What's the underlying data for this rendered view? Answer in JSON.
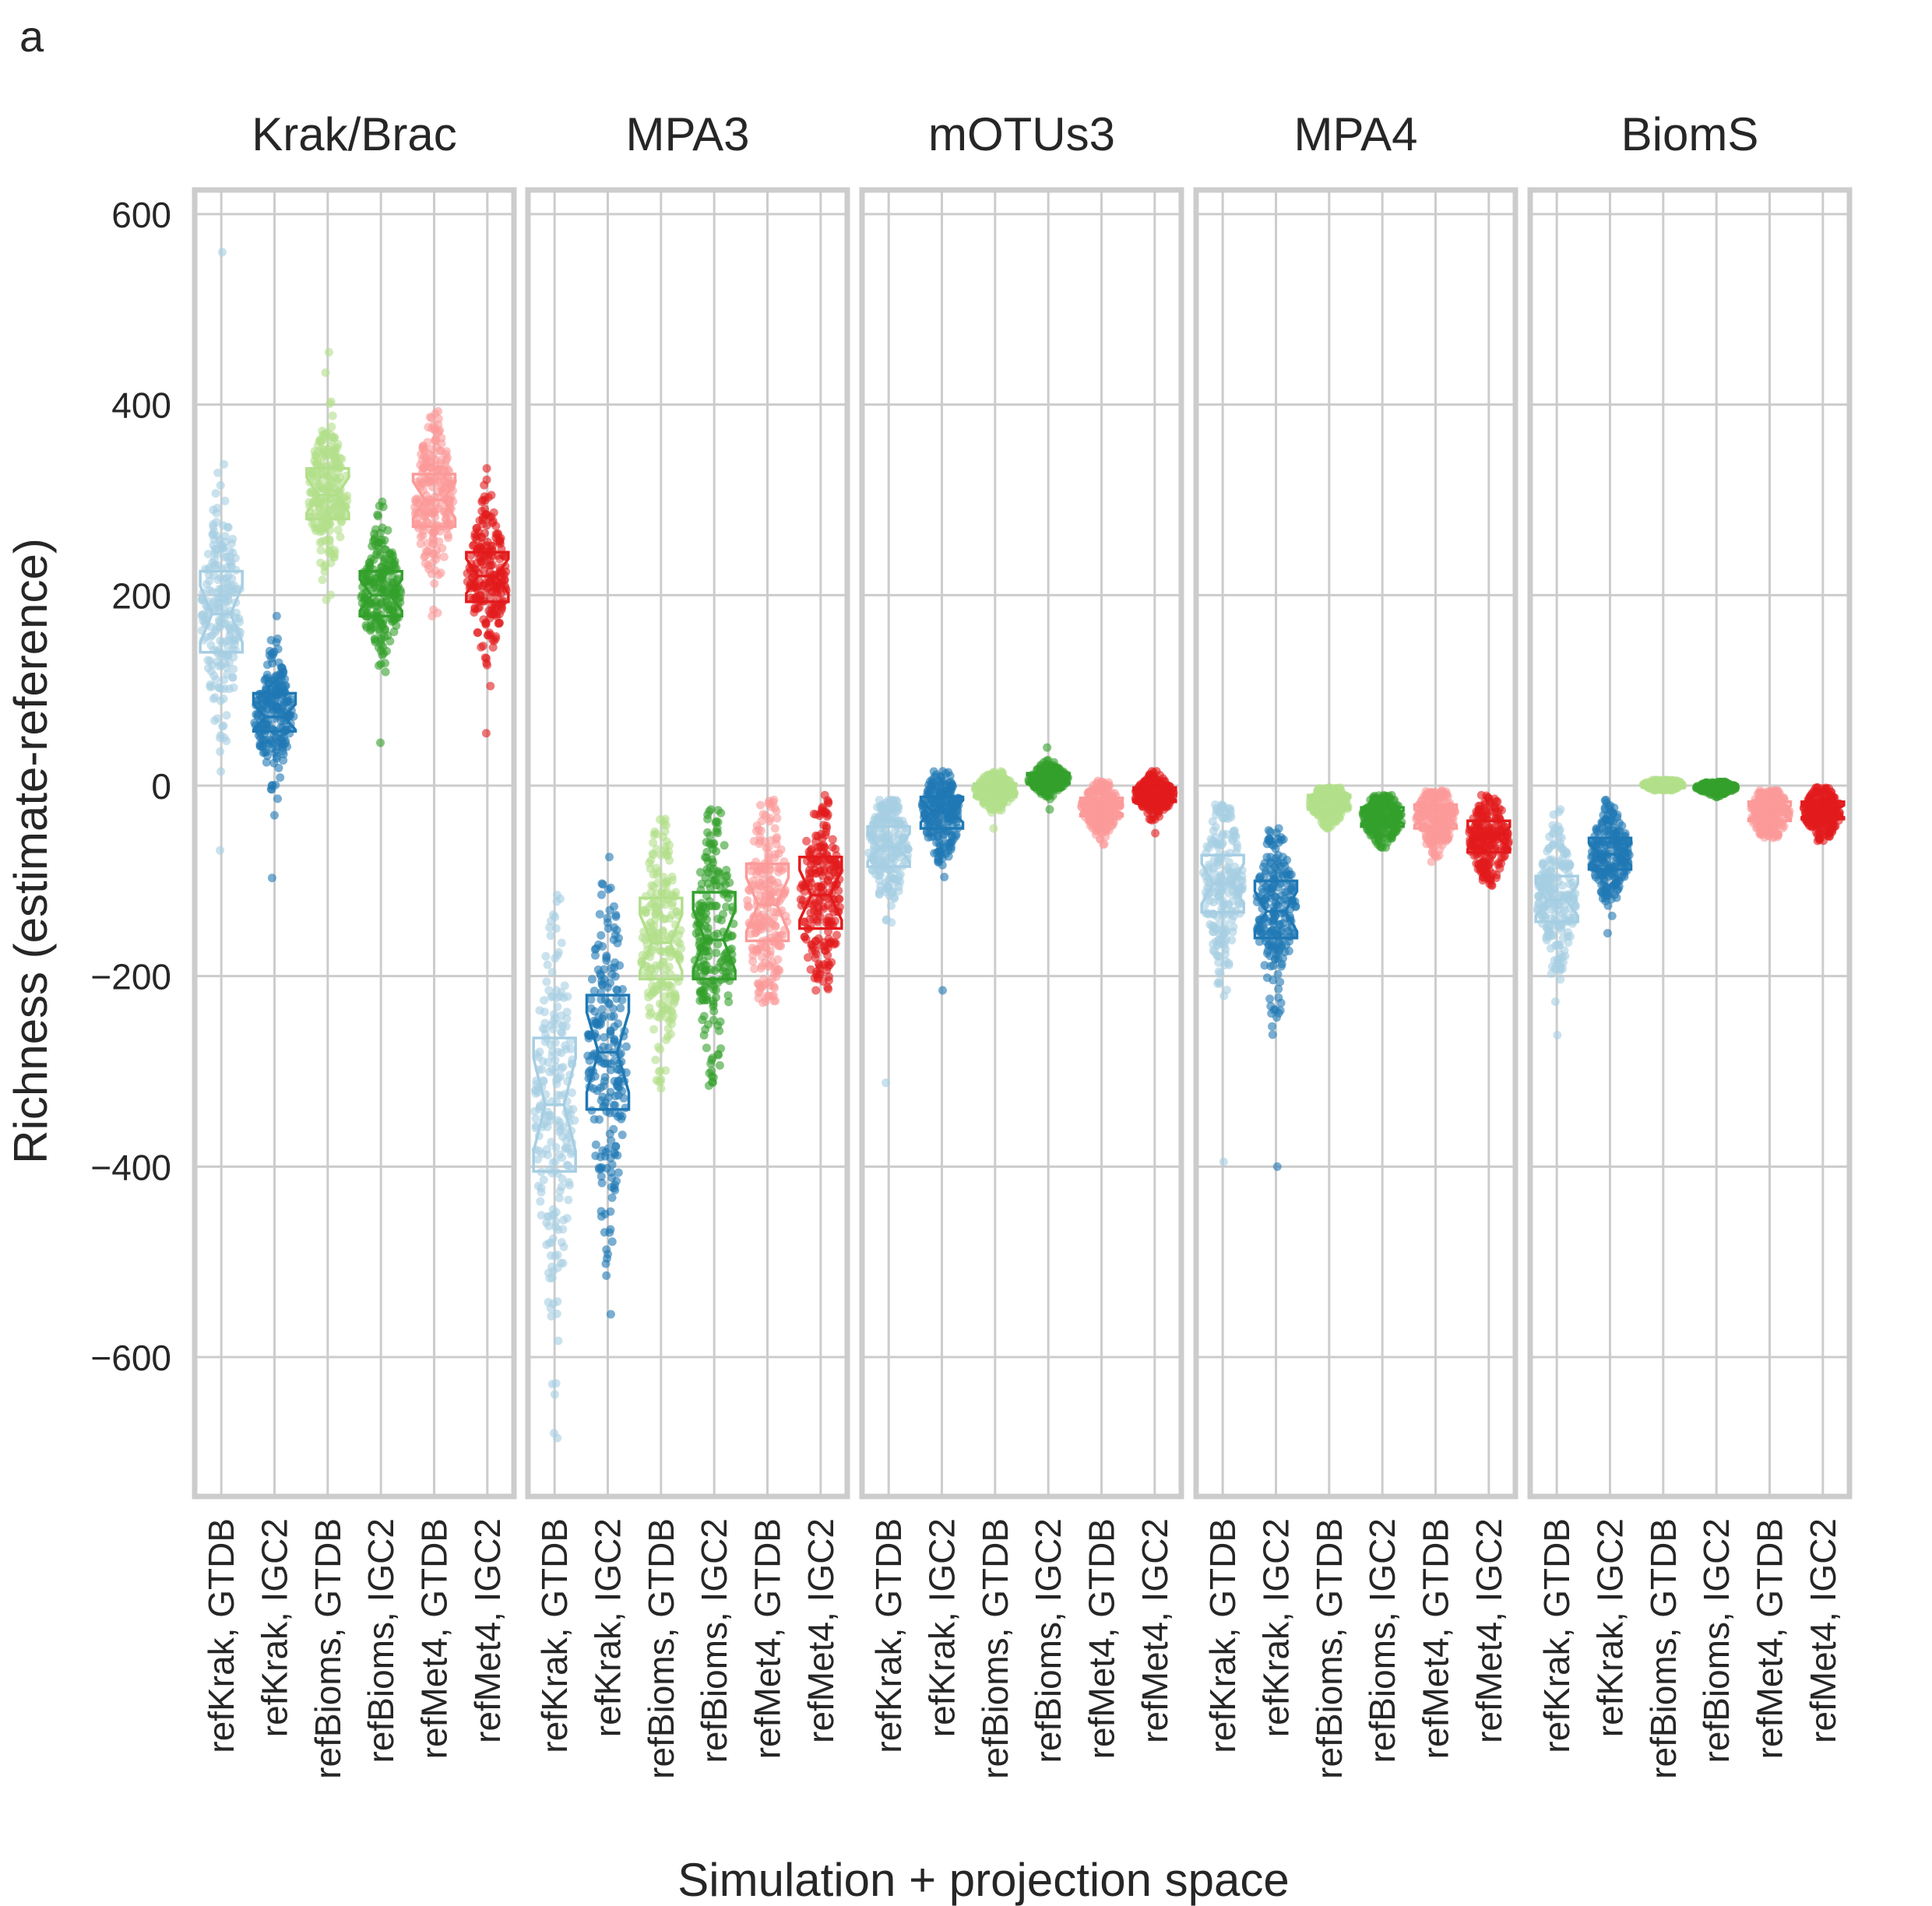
{
  "panel_label": "a",
  "chart_data": {
    "type": "box",
    "ylabel": "Richness (estimate-reference)",
    "xlabel": "Simulation + projection space",
    "ylim": [
      -730,
      625
    ],
    "yticks": [
      600,
      400,
      200,
      0,
      -200,
      -400,
      -600
    ],
    "ytick_labels": [
      "600",
      "400",
      "200",
      "0",
      "−200",
      "−400",
      "−600"
    ],
    "grid": true,
    "categories": [
      "refKrak, GTDB",
      "refKrak, IGC2",
      "refBioms, GTDB",
      "refBioms, IGC2",
      "refMet4, GTDB",
      "refMet4, IGC2"
    ],
    "colors": [
      "#a6cee3",
      "#1f78b4",
      "#b2df8a",
      "#33a02c",
      "#fb9a99",
      "#e31a1c"
    ],
    "panels": [
      {
        "title": "Krak/Brac",
        "boxes": [
          {
            "q1": 140,
            "median": 180,
            "q3": 225,
            "min": -68,
            "max": 560
          },
          {
            "q1": 57,
            "median": 72,
            "q3": 97,
            "min": -97,
            "max": 178
          },
          {
            "q1": 280,
            "median": 305,
            "q3": 333,
            "min": 195,
            "max": 455
          },
          {
            "q1": 178,
            "median": 200,
            "q3": 225,
            "min": 45,
            "max": 298
          },
          {
            "q1": 272,
            "median": 300,
            "q3": 327,
            "min": 178,
            "max": 393
          },
          {
            "q1": 193,
            "median": 220,
            "q3": 245,
            "min": 55,
            "max": 333
          }
        ]
      },
      {
        "title": "MPA3",
        "boxes": [
          {
            "q1": -405,
            "median": -335,
            "q3": -265,
            "min": -685,
            "max": -115
          },
          {
            "q1": -340,
            "median": -280,
            "q3": -220,
            "min": -555,
            "max": -75
          },
          {
            "q1": -203,
            "median": -165,
            "q3": -118,
            "min": -318,
            "max": -35
          },
          {
            "q1": -203,
            "median": -162,
            "q3": -112,
            "min": -315,
            "max": -25
          },
          {
            "q1": -163,
            "median": -125,
            "q3": -82,
            "min": -228,
            "max": -15
          },
          {
            "q1": -150,
            "median": -115,
            "q3": -75,
            "min": -215,
            "max": -10
          }
        ]
      },
      {
        "title": "mOTUs3",
        "boxes": [
          {
            "q1": -85,
            "median": -65,
            "q3": -43,
            "min": -312,
            "max": -15
          },
          {
            "q1": -45,
            "median": -27,
            "q3": -12,
            "min": -215,
            "max": 15
          },
          {
            "q1": -12,
            "median": -5,
            "q3": 2,
            "min": -45,
            "max": 15
          },
          {
            "q1": 2,
            "median": 7,
            "q3": 13,
            "min": -25,
            "max": 40
          },
          {
            "q1": -32,
            "median": -23,
            "q3": -13,
            "min": -62,
            "max": 5
          },
          {
            "q1": -17,
            "median": -10,
            "q3": -2,
            "min": -50,
            "max": 15
          }
        ]
      },
      {
        "title": "MPA4",
        "boxes": [
          {
            "q1": -133,
            "median": -103,
            "q3": -73,
            "min": -395,
            "max": -20
          },
          {
            "q1": -160,
            "median": -132,
            "q3": -100,
            "min": -400,
            "max": -45
          },
          {
            "q1": -25,
            "median": -18,
            "q3": -10,
            "min": -45,
            "max": -2
          },
          {
            "q1": -43,
            "median": -33,
            "q3": -23,
            "min": -65,
            "max": -10
          },
          {
            "q1": -45,
            "median": -33,
            "q3": -20,
            "min": -80,
            "max": -5
          },
          {
            "q1": -70,
            "median": -55,
            "q3": -37,
            "min": -105,
            "max": -10
          }
        ]
      },
      {
        "title": "BiomS",
        "boxes": [
          {
            "q1": -143,
            "median": -120,
            "q3": -95,
            "min": -262,
            "max": -25
          },
          {
            "q1": -88,
            "median": -72,
            "q3": -55,
            "min": -155,
            "max": -15
          },
          {
            "q1": -2,
            "median": 1,
            "q3": 3,
            "min": -5,
            "max": 6
          },
          {
            "q1": -4,
            "median": -2,
            "q3": 1,
            "min": -12,
            "max": 4
          },
          {
            "q1": -37,
            "median": -28,
            "q3": -17,
            "min": -55,
            "max": -5
          },
          {
            "q1": -35,
            "median": -27,
            "q3": -17,
            "min": -58,
            "max": -2
          }
        ]
      }
    ]
  }
}
